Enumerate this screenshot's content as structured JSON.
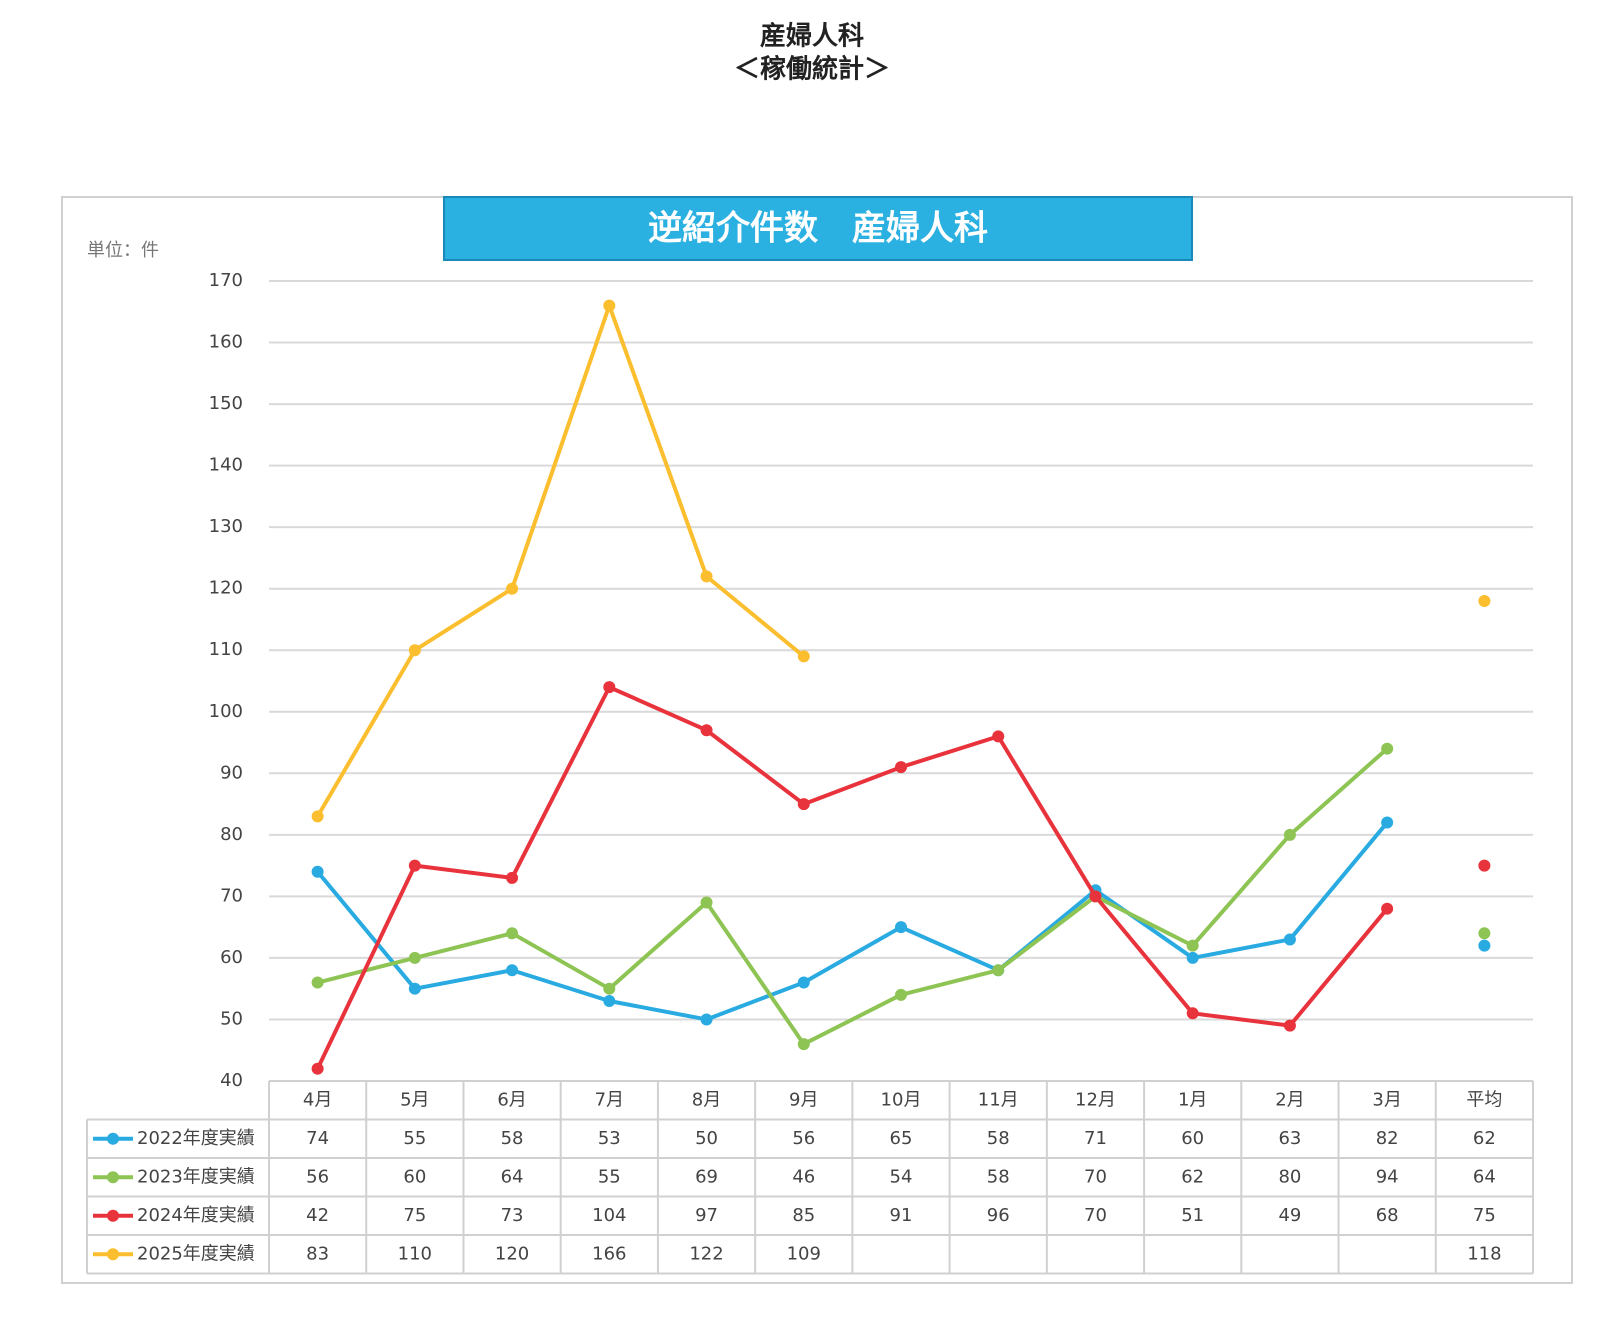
{
  "header": {
    "title": "産婦人科",
    "subtitle": "＜稼働統計＞"
  },
  "chart_data": {
    "type": "line",
    "title": "逆紹介件数　産婦人科",
    "unit_label": "単位：件",
    "categories": [
      "4月",
      "5月",
      "6月",
      "7月",
      "8月",
      "9月",
      "10月",
      "11月",
      "12月",
      "1月",
      "2月",
      "3月"
    ],
    "average_label": "平均",
    "series": [
      {
        "name": "2022年度実績",
        "color": "#29abe2",
        "values": [
          74,
          55,
          58,
          53,
          50,
          56,
          65,
          58,
          71,
          60,
          63,
          82
        ],
        "average": 62
      },
      {
        "name": "2023年度実績",
        "color": "#8dc453",
        "values": [
          56,
          60,
          64,
          55,
          69,
          46,
          54,
          58,
          70,
          62,
          80,
          94
        ],
        "average": 64
      },
      {
        "name": "2024年度実績",
        "color": "#e8333c",
        "values": [
          42,
          75,
          73,
          104,
          97,
          85,
          91,
          96,
          70,
          51,
          49,
          68
        ],
        "average": 75
      },
      {
        "name": "2025年度実績",
        "color": "#fbbe2e",
        "values": [
          83,
          110,
          120,
          166,
          122,
          109,
          null,
          null,
          null,
          null,
          null,
          null
        ],
        "average": 118
      }
    ],
    "ylim": [
      40,
      170
    ],
    "yticks": [
      40,
      50,
      60,
      70,
      80,
      90,
      100,
      110,
      120,
      130,
      140,
      150,
      160,
      170
    ],
    "grid": true
  }
}
